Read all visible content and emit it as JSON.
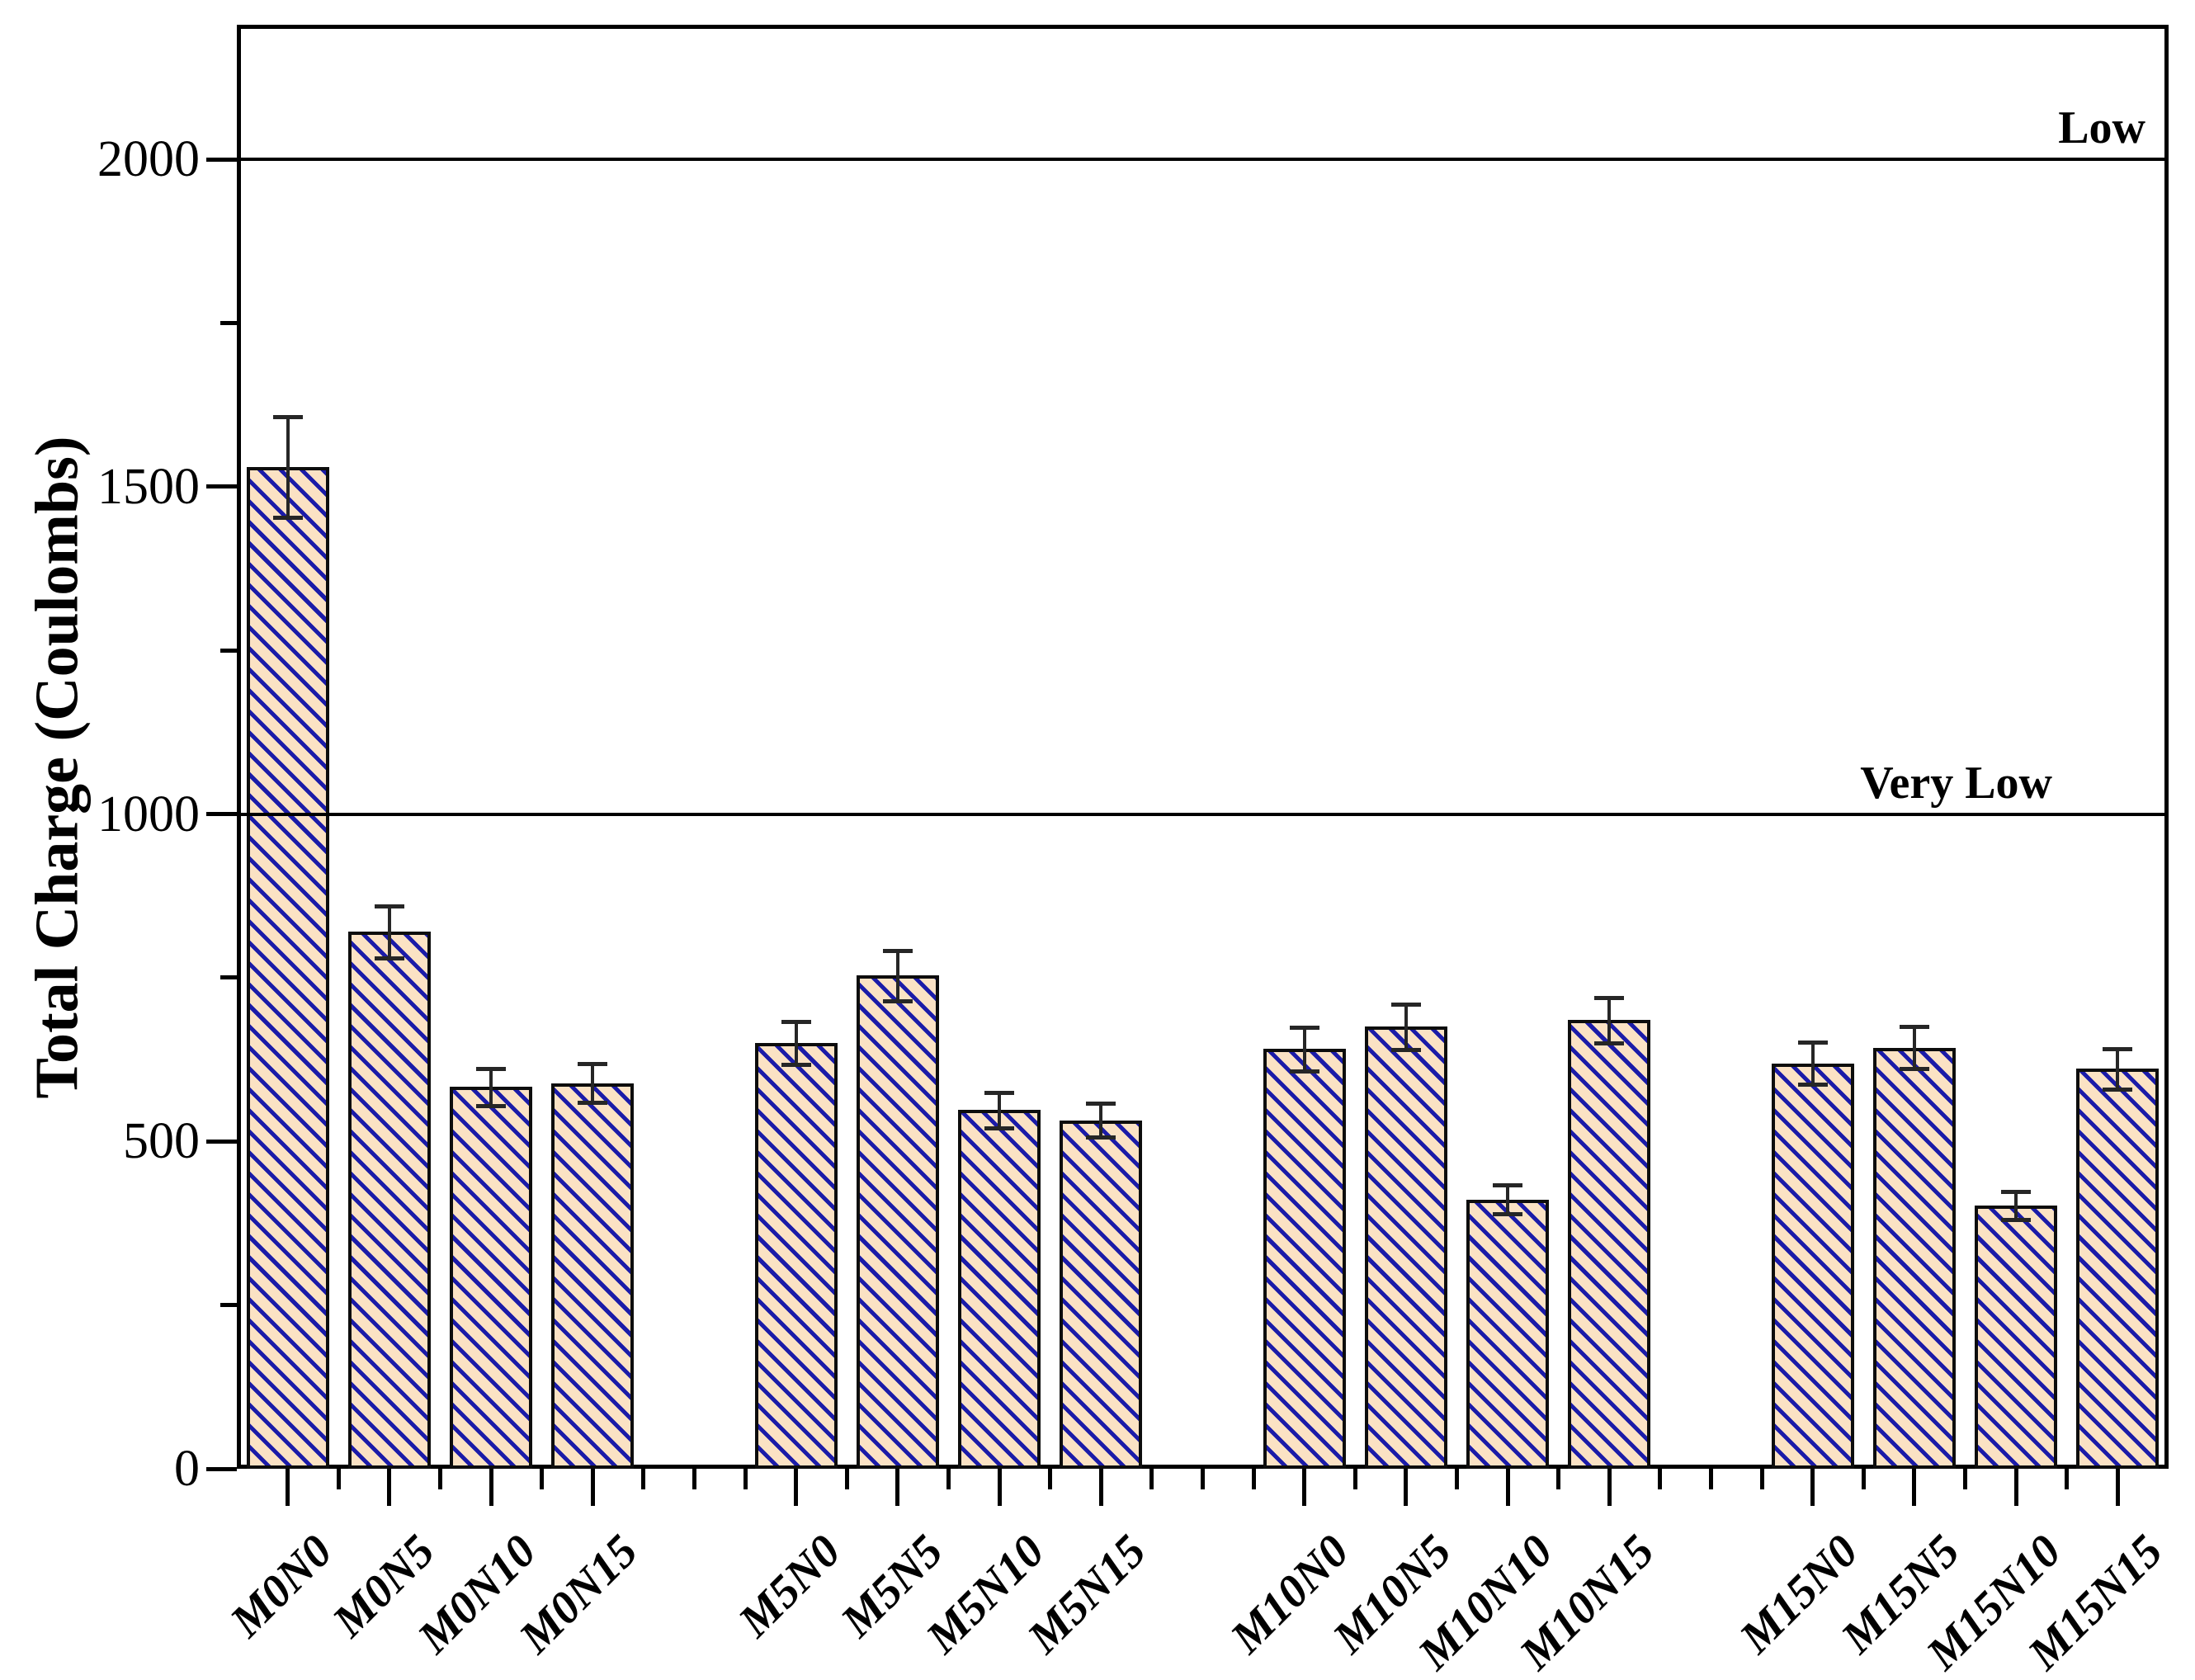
{
  "chart_data": {
    "type": "bar",
    "title": "",
    "xlabel": "",
    "ylabel": "Total Charge (Coulombs)",
    "categories": [
      "M0N0",
      "M0N5",
      "M0N10",
      "M0N15",
      "M5N0",
      "M5N5",
      "M5N10",
      "M5N15",
      "M10N0",
      "M10N5",
      "M10N10",
      "M10N15",
      "M15N0",
      "M15N5",
      "M15N10",
      "M15N15"
    ],
    "values": [
      1530,
      820,
      583,
      589,
      650,
      753,
      548,
      532,
      641,
      675,
      411,
      685,
      619,
      643,
      402,
      611
    ],
    "errors": [
      77,
      40,
      28,
      30,
      33,
      38,
      27,
      26,
      33,
      35,
      22,
      35,
      32,
      32,
      21,
      31
    ],
    "group_size": 4,
    "slot_positions": [
      1,
      2,
      3,
      4,
      6,
      7,
      8,
      9,
      11,
      12,
      13,
      14,
      16,
      17,
      18,
      19
    ],
    "empty_slots": [
      5,
      10,
      15
    ],
    "total_slots": 19,
    "ylim": [
      0,
      2200
    ],
    "yticks_major": [
      0,
      500,
      1000,
      1500,
      2000
    ],
    "ytick_labels": [
      "0",
      "500",
      "1000",
      "1500",
      "2000"
    ],
    "yticks_minor": [
      250,
      750,
      1250,
      1750
    ],
    "reference_lines": [
      {
        "value": 2000,
        "label": "Low"
      },
      {
        "value": 1000,
        "label": "Very Low"
      }
    ],
    "grid": false,
    "legend": false,
    "colors": {
      "bar_fill": "#fbe2c4",
      "hatch": "#1b1ba8",
      "bar_edge": "#0d0d0d",
      "error_bar": "#262626",
      "axis": "#000000"
    },
    "hatch_style": "backslash-diagonal"
  }
}
